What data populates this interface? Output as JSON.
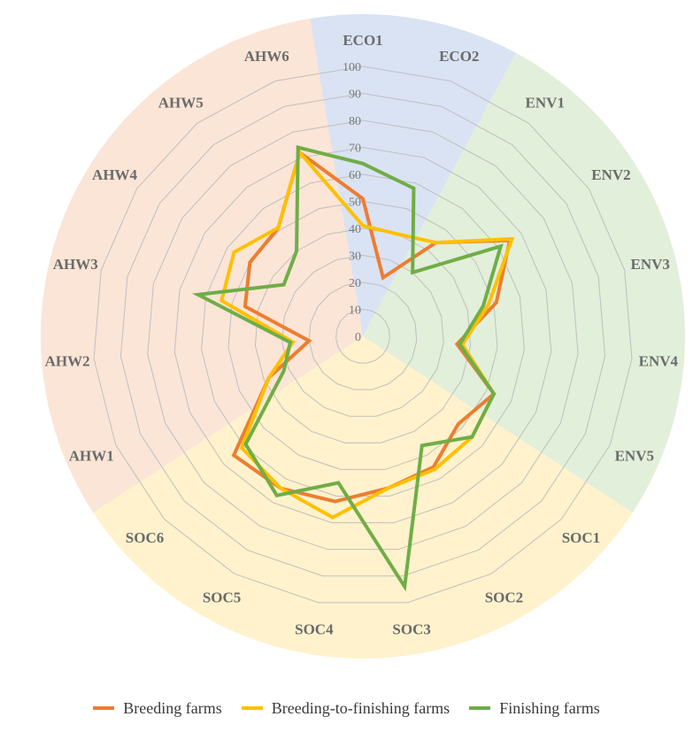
{
  "chart_data": {
    "type": "radar",
    "title": "",
    "categories": [
      "ECO1",
      "ECO2",
      "ENV1",
      "ENV2",
      "ENV3",
      "ENV4",
      "ENV5",
      "SOC1",
      "SOC2",
      "SOC3",
      "SOC4",
      "SOC5",
      "SOC6",
      "AHW1",
      "AHW2",
      "AHW3",
      "AHW4",
      "AHW5",
      "AHW6"
    ],
    "rlim": [
      0,
      100
    ],
    "ticks": [
      "0",
      "10",
      "20",
      "30",
      "40",
      "50",
      "60",
      "70",
      "80",
      "90",
      "100"
    ],
    "grid": true,
    "legend_position": "bottom",
    "sectors": [
      {
        "group": "ECO",
        "color": "#dae3f3",
        "categories": [
          "ECO1",
          "ECO2"
        ]
      },
      {
        "group": "ENV",
        "color": "#e2efda",
        "categories": [
          "ENV1",
          "ENV2",
          "ENV3",
          "ENV4",
          "ENV5"
        ]
      },
      {
        "group": "SOC",
        "color": "#fff2cc",
        "categories": [
          "SOC1",
          "SOC2",
          "SOC3",
          "SOC4",
          "SOC5",
          "SOC6"
        ]
      },
      {
        "group": "AHW",
        "color": "#fbe5d6",
        "categories": [
          "AHW1",
          "AHW2",
          "AHW3",
          "AHW4",
          "AHW5",
          "AHW6"
        ]
      }
    ],
    "series": [
      {
        "name": "Breeding farms",
        "color": "#ed7d31",
        "values": [
          51,
          23,
          44,
          65,
          51,
          35,
          53,
          48,
          55,
          57,
          62,
          64,
          65,
          38,
          20,
          45,
          50,
          51,
          72
        ]
      },
      {
        "name": "Breeding-to-finishing farms",
        "color": "#ffc000",
        "values": [
          41,
          40,
          44,
          66,
          48,
          37,
          53,
          55,
          56,
          57,
          68,
          64,
          61,
          38,
          26,
          54,
          57,
          51,
          72
        ]
      },
      {
        "name": "Finishing farms",
        "color": "#70ad47",
        "values": [
          64,
          58,
          30,
          61,
          46,
          36,
          53,
          55,
          46,
          94,
          55,
          67,
          59,
          32,
          27,
          63,
          35,
          40,
          74
        ]
      }
    ]
  }
}
